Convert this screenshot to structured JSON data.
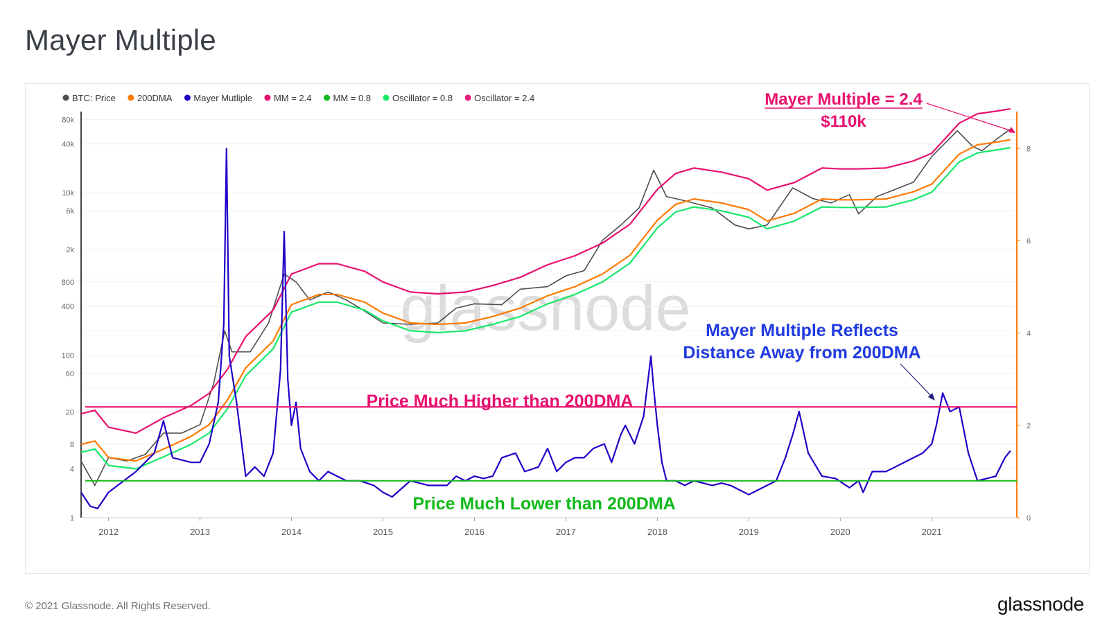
{
  "page": {
    "title": "Mayer Multiple",
    "copyright": "© 2021 Glassnode. All Rights Reserved.",
    "brand": "glassnode",
    "watermark": "glassnode"
  },
  "chart_data": {
    "type": "line",
    "title": "Mayer Multiple",
    "x_ticks": [
      "2012",
      "2013",
      "2014",
      "2015",
      "2016",
      "2017",
      "2018",
      "2019",
      "2020",
      "2021"
    ],
    "y_left_ticks": [
      "80k",
      "40k",
      "10k",
      "6k",
      "2k",
      "800",
      "400",
      "100",
      "60",
      "20",
      "8",
      "4",
      "1"
    ],
    "y_left_tick_values": [
      80000,
      40000,
      10000,
      6000,
      2000,
      800,
      400,
      100,
      60,
      20,
      8,
      4,
      1
    ],
    "y_left_scale": "log",
    "y_left_range": [
      1,
      100000
    ],
    "y_right_ticks": [
      "0",
      "2",
      "4",
      "6",
      "8"
    ],
    "y_right_range": [
      0,
      8.8
    ],
    "x_range": [
      2011.7,
      2021.93
    ],
    "legend_position": "top-left",
    "legend": [
      {
        "name": "BTC: Price",
        "color": "#4d4d4d"
      },
      {
        "name": "200DMA",
        "color": "#ff7a00"
      },
      {
        "name": "Mayer Mutliple",
        "color": "#1f00c8"
      },
      {
        "name": "MM = 2.4",
        "color": "#e8106e"
      },
      {
        "name": "MM = 0.8",
        "color": "#10b91a"
      },
      {
        "name": "Oscillator = 0.8",
        "color": "#18e86a"
      },
      {
        "name": "Oscillator = 2.4",
        "color": "#ea1a7a"
      }
    ],
    "series": [
      {
        "name": "BTC: Price",
        "axis": "left",
        "color": "#4d4d4d",
        "x": [
          2011.7,
          2011.85,
          2012.0,
          2012.2,
          2012.4,
          2012.6,
          2012.8,
          2013.0,
          2013.15,
          2013.27,
          2013.35,
          2013.55,
          2013.75,
          2013.92,
          2014.05,
          2014.2,
          2014.4,
          2014.6,
          2014.8,
          2015.0,
          2015.3,
          2015.6,
          2015.8,
          2016.0,
          2016.3,
          2016.5,
          2016.8,
          2017.0,
          2017.2,
          2017.4,
          2017.6,
          2017.8,
          2017.96,
          2018.1,
          2018.3,
          2018.6,
          2018.85,
          2019.0,
          2019.2,
          2019.48,
          2019.7,
          2019.9,
          2020.1,
          2020.2,
          2020.4,
          2020.6,
          2020.8,
          2021.0,
          2021.28,
          2021.45,
          2021.55,
          2021.7,
          2021.86
        ],
        "y": [
          5,
          2.5,
          5.5,
          5,
          6,
          11,
          11,
          14,
          45,
          200,
          110,
          110,
          250,
          1000,
          800,
          480,
          600,
          480,
          350,
          250,
          240,
          250,
          380,
          430,
          420,
          650,
          700,
          950,
          1100,
          2600,
          4000,
          6500,
          19000,
          9000,
          8000,
          6500,
          4000,
          3600,
          4000,
          11500,
          8500,
          7500,
          9500,
          5500,
          9000,
          11000,
          13500,
          28000,
          58000,
          37000,
          33000,
          45000,
          61000
        ]
      },
      {
        "name": "200DMA",
        "axis": "left",
        "color": "#ff7a00",
        "x": [
          2011.7,
          2011.85,
          2012.0,
          2012.3,
          2012.6,
          2012.9,
          2013.1,
          2013.3,
          2013.5,
          2013.8,
          2014.0,
          2014.3,
          2014.5,
          2014.8,
          2015.0,
          2015.3,
          2015.6,
          2015.9,
          2016.2,
          2016.5,
          2016.8,
          2017.1,
          2017.4,
          2017.7,
          2018.0,
          2018.2,
          2018.4,
          2018.7,
          2019.0,
          2019.2,
          2019.5,
          2019.8,
          2020.0,
          2020.2,
          2020.5,
          2020.8,
          2021.0,
          2021.3,
          2021.5,
          2021.7,
          2021.86
        ],
        "y": [
          8,
          8.8,
          5.5,
          5,
          7,
          10,
          14,
          28,
          70,
          150,
          420,
          560,
          560,
          450,
          330,
          250,
          240,
          250,
          300,
          380,
          540,
          700,
          1000,
          1700,
          4600,
          7200,
          8400,
          7500,
          6200,
          4500,
          5600,
          8400,
          8200,
          8200,
          8400,
          10300,
          12800,
          30000,
          39000,
          42000,
          45000
        ]
      },
      {
        "name": "MM = 2.4",
        "axis": "left",
        "color": "#e8106e",
        "x": [
          2011.7,
          2011.85,
          2012.0,
          2012.3,
          2012.6,
          2012.9,
          2013.1,
          2013.3,
          2013.5,
          2013.8,
          2014.0,
          2014.3,
          2014.5,
          2014.8,
          2015.0,
          2015.3,
          2015.6,
          2015.9,
          2016.2,
          2016.5,
          2016.8,
          2017.1,
          2017.4,
          2017.7,
          2018.0,
          2018.2,
          2018.4,
          2018.7,
          2019.0,
          2019.2,
          2019.5,
          2019.8,
          2020.0,
          2020.2,
          2020.5,
          2020.8,
          2021.0,
          2021.3,
          2021.5,
          2021.7,
          2021.86
        ],
        "y": [
          19,
          21,
          13,
          11,
          17,
          24,
          34,
          67,
          170,
          360,
          1000,
          1340,
          1340,
          1080,
          800,
          600,
          570,
          600,
          720,
          910,
          1300,
          1680,
          2400,
          4100,
          11000,
          17300,
          20200,
          18000,
          14900,
          10800,
          13400,
          20200,
          19700,
          19700,
          20200,
          24700,
          30700,
          72000,
          94000,
          101000,
          108000
        ]
      },
      {
        "name": "Oscillator = 0.8",
        "axis": "left",
        "color": "#18e86a",
        "x": [
          2011.7,
          2011.85,
          2012.0,
          2012.3,
          2012.6,
          2012.9,
          2013.1,
          2013.3,
          2013.5,
          2013.8,
          2014.0,
          2014.3,
          2014.5,
          2014.8,
          2015.0,
          2015.3,
          2015.6,
          2015.9,
          2016.2,
          2016.5,
          2016.8,
          2017.1,
          2017.4,
          2017.7,
          2018.0,
          2018.2,
          2018.4,
          2018.7,
          2019.0,
          2019.2,
          2019.5,
          2019.8,
          2020.0,
          2020.2,
          2020.5,
          2020.8,
          2021.0,
          2021.3,
          2021.5,
          2021.7,
          2021.86
        ],
        "y": [
          6.4,
          7,
          4.4,
          4,
          5.6,
          8,
          11,
          22,
          56,
          120,
          340,
          450,
          450,
          360,
          265,
          200,
          190,
          200,
          240,
          300,
          430,
          560,
          800,
          1360,
          3700,
          5800,
          6700,
          6000,
          5000,
          3600,
          4500,
          6700,
          6600,
          6600,
          6700,
          8200,
          10200,
          24000,
          31000,
          33600,
          36000
        ]
      },
      {
        "name": "Mayer Mutliple",
        "axis": "right",
        "color": "#1f00c8",
        "x": [
          2011.7,
          2011.8,
          2011.88,
          2012.0,
          2012.1,
          2012.3,
          2012.5,
          2012.6,
          2012.7,
          2012.9,
          2013.0,
          2013.1,
          2013.2,
          2013.26,
          2013.29,
          2013.32,
          2013.4,
          2013.5,
          2013.6,
          2013.7,
          2013.8,
          2013.88,
          2013.92,
          2013.96,
          2014.0,
          2014.05,
          2014.1,
          2014.2,
          2014.3,
          2014.4,
          2014.5,
          2014.6,
          2014.75,
          2014.9,
          2015.0,
          2015.1,
          2015.3,
          2015.5,
          2015.7,
          2015.8,
          2015.9,
          2016.0,
          2016.1,
          2016.2,
          2016.3,
          2016.45,
          2016.55,
          2016.7,
          2016.8,
          2016.9,
          2017.0,
          2017.1,
          2017.2,
          2017.3,
          2017.42,
          2017.5,
          2017.6,
          2017.65,
          2017.75,
          2017.85,
          2017.93,
          2017.96,
          2018.0,
          2018.05,
          2018.1,
          2018.2,
          2018.3,
          2018.4,
          2018.5,
          2018.6,
          2018.7,
          2018.8,
          2018.9,
          2019.0,
          2019.1,
          2019.2,
          2019.3,
          2019.4,
          2019.48,
          2019.55,
          2019.65,
          2019.8,
          2019.95,
          2020.1,
          2020.2,
          2020.25,
          2020.35,
          2020.5,
          2020.6,
          2020.7,
          2020.8,
          2020.9,
          2021.0,
          2021.05,
          2021.12,
          2021.2,
          2021.3,
          2021.4,
          2021.5,
          2021.6,
          2021.7,
          2021.8,
          2021.86
        ],
        "y": [
          0.55,
          0.25,
          0.2,
          0.55,
          0.7,
          1.0,
          1.4,
          2.1,
          1.3,
          1.2,
          1.2,
          1.6,
          2.5,
          4.2,
          8.0,
          3.5,
          2.5,
          0.9,
          1.1,
          0.9,
          1.4,
          3.2,
          6.2,
          3.0,
          2.0,
          2.5,
          1.5,
          1.0,
          0.8,
          1.0,
          0.9,
          0.8,
          0.8,
          0.7,
          0.55,
          0.45,
          0.8,
          0.7,
          0.7,
          0.9,
          0.8,
          0.9,
          0.85,
          0.9,
          1.3,
          1.4,
          1.0,
          1.1,
          1.5,
          1.0,
          1.2,
          1.3,
          1.3,
          1.5,
          1.6,
          1.2,
          1.8,
          2.0,
          1.6,
          2.2,
          3.5,
          2.8,
          2.0,
          1.2,
          0.8,
          0.8,
          0.7,
          0.8,
          0.75,
          0.7,
          0.75,
          0.7,
          0.6,
          0.5,
          0.6,
          0.7,
          0.8,
          1.3,
          1.8,
          2.3,
          1.4,
          0.9,
          0.85,
          0.65,
          0.8,
          0.55,
          1.0,
          1.0,
          1.1,
          1.2,
          1.3,
          1.4,
          1.6,
          2.0,
          2.7,
          2.3,
          2.4,
          1.4,
          0.8,
          0.85,
          0.9,
          1.3,
          1.45
        ]
      }
    ],
    "reference_lines": [
      {
        "name": "MM = 2.4",
        "axis": "right",
        "value": 2.4,
        "color": "#e8106e"
      },
      {
        "name": "MM = 0.8",
        "axis": "right",
        "value": 0.8,
        "color": "#10b91a"
      }
    ],
    "annotations": [
      {
        "text": "Mayer Multiple = 2.4",
        "color": "#e8106e"
      },
      {
        "text": "$110k",
        "color": "#e8106e"
      },
      {
        "text": "Mayer Multiple Reflects",
        "color": "#1f3ae0"
      },
      {
        "text": "Distance Away from 200DMA",
        "color": "#1f3ae0"
      },
      {
        "text": "Price Much Higher than 200DMA",
        "color": "#e8106e"
      },
      {
        "text": "Price Much Lower than 200DMA",
        "color": "#10b91a"
      }
    ]
  }
}
